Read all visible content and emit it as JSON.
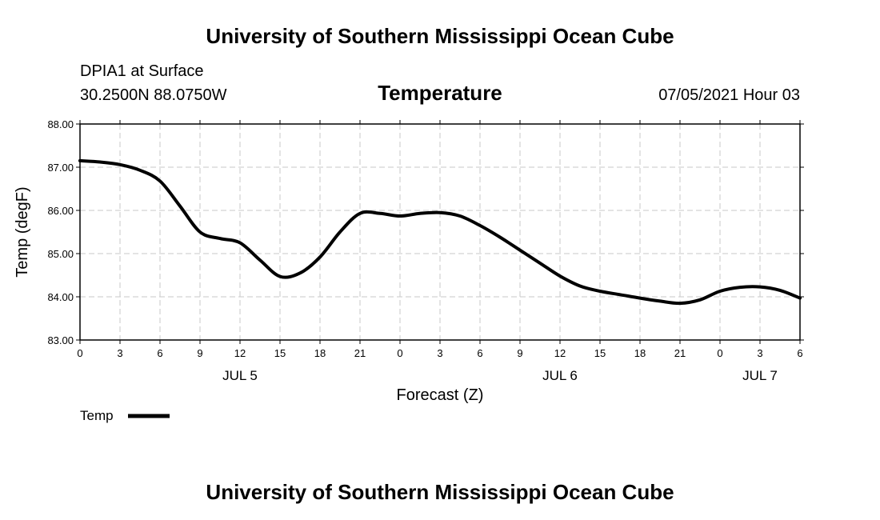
{
  "header": {
    "title": "University of Southern Mississippi Ocean Cube",
    "station": "DPIA1 at Surface",
    "coords": "30.2500N  88.0750W",
    "datetime": "07/05/2021 Hour 03"
  },
  "footer": {
    "title": "University of Southern Mississippi Ocean Cube"
  },
  "chart_data": {
    "type": "line",
    "title": "Temperature",
    "xlabel": "Forecast (Z)",
    "ylabel": "Temp (degF)",
    "ylim": [
      83.0,
      88.0
    ],
    "xlim": [
      0,
      54
    ],
    "y_ticks": [
      "83.00",
      "84.00",
      "85.00",
      "86.00",
      "87.00",
      "88.00"
    ],
    "x_tick_labels": [
      "0",
      "3",
      "6",
      "9",
      "12",
      "15",
      "18",
      "21",
      "0",
      "3",
      "6",
      "9",
      "12",
      "15",
      "18",
      "21",
      "0",
      "3",
      "6"
    ],
    "date_labels": [
      {
        "label": "JUL 5",
        "hour": 12
      },
      {
        "label": "JUL 6",
        "hour": 36
      },
      {
        "label": "JUL 7",
        "hour": 51
      }
    ],
    "grid": true,
    "legend": "bottom-left",
    "series": [
      {
        "name": "Temp",
        "color": "#000000",
        "x": [
          0,
          1.5,
          3,
          4.5,
          6,
          7.5,
          9,
          10.5,
          12,
          13.5,
          15,
          16.5,
          18,
          19.5,
          21,
          22.5,
          24,
          25.5,
          27,
          28.5,
          30,
          31.5,
          33,
          34.5,
          36,
          37.5,
          39,
          40.5,
          42,
          43.5,
          45,
          46.5,
          48,
          49.5,
          51,
          52.5,
          54
        ],
        "values": [
          87.15,
          87.12,
          87.06,
          86.93,
          86.68,
          86.1,
          85.5,
          85.35,
          85.25,
          84.85,
          84.47,
          84.55,
          84.92,
          85.5,
          85.93,
          85.93,
          85.87,
          85.93,
          85.95,
          85.87,
          85.65,
          85.38,
          85.08,
          84.78,
          84.48,
          84.25,
          84.13,
          84.05,
          83.97,
          83.9,
          83.85,
          83.93,
          84.13,
          84.22,
          84.23,
          84.15,
          83.97
        ]
      }
    ]
  }
}
